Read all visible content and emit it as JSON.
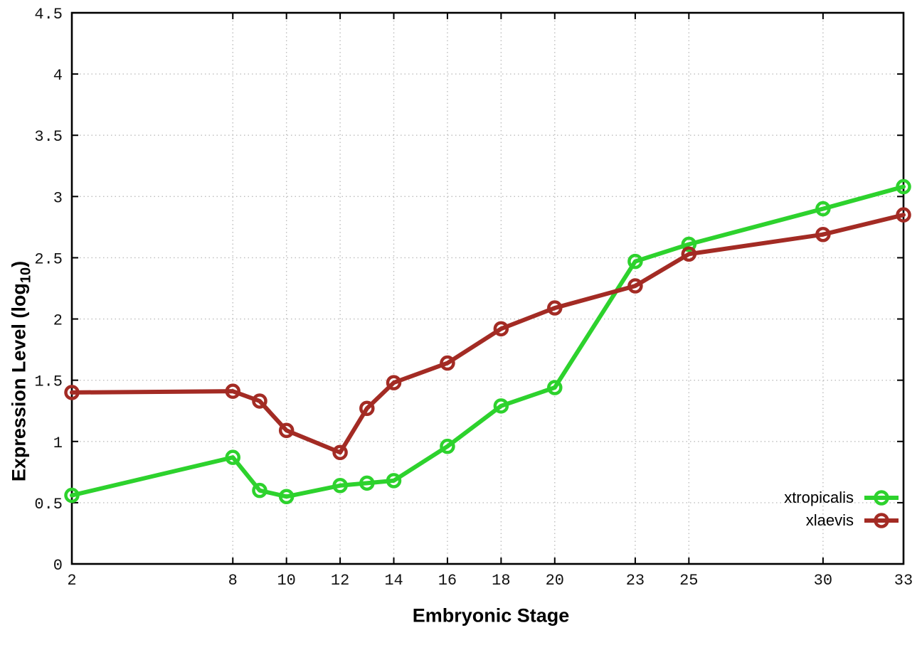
{
  "chart_data": {
    "type": "line",
    "title": "",
    "xlabel": "Embryonic Stage",
    "ylabel": "Expression Level (log10)",
    "ylabel_parts": {
      "main": "Expression Level (log",
      "sub": "10",
      "close": ")"
    },
    "x": [
      2,
      8,
      9,
      10,
      12,
      13,
      14,
      16,
      18,
      20,
      23,
      25,
      30,
      33
    ],
    "series": [
      {
        "name": "xtropicalis",
        "color": "#2dd22d",
        "values": [
          0.56,
          0.87,
          0.6,
          0.55,
          0.64,
          0.66,
          0.68,
          0.96,
          1.29,
          1.44,
          2.47,
          2.61,
          2.9,
          3.08
        ]
      },
      {
        "name": "xlaevis",
        "color": "#a32b24",
        "values": [
          1.4,
          1.41,
          1.33,
          1.09,
          0.91,
          1.27,
          1.48,
          1.64,
          1.92,
          2.09,
          2.27,
          2.53,
          2.69,
          2.85
        ]
      }
    ],
    "xticks": [
      2,
      8,
      10,
      12,
      14,
      16,
      18,
      20,
      23,
      25,
      30,
      33
    ],
    "yticks": [
      0,
      0.5,
      1,
      1.5,
      2,
      2.5,
      3,
      3.5,
      4,
      4.5
    ],
    "xlim": [
      2,
      33
    ],
    "ylim": [
      0,
      4.5
    ],
    "grid": true,
    "legend_position": "bottom-right",
    "colors": {
      "border": "#000000",
      "grid": "#bdbdbd",
      "tick_text": "#111111",
      "background": "#ffffff"
    }
  }
}
